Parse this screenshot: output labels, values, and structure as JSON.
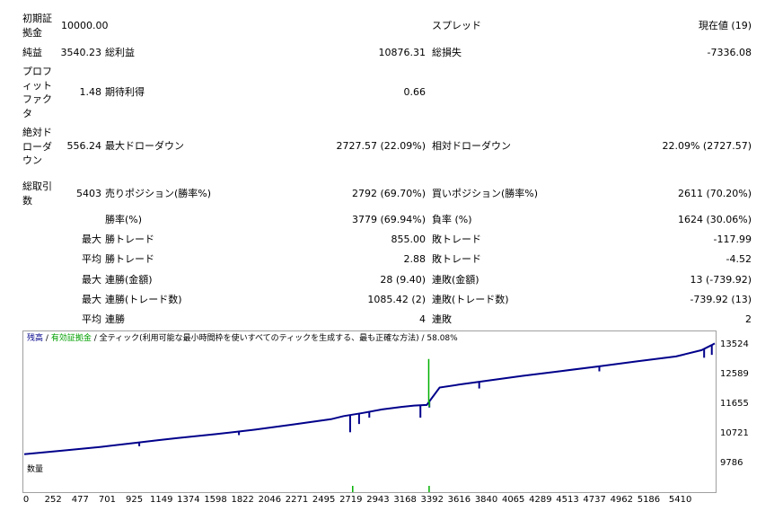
{
  "report": {
    "initial_deposit": {
      "label": "初期証拠金",
      "value": "10000.00"
    },
    "spread": {
      "label": "スプレッド",
      "value": "現在値 (19)"
    },
    "net_profit": {
      "label": "純益",
      "value": "3540.23"
    },
    "gross_profit": {
      "label": "総利益",
      "value": "10876.31"
    },
    "gross_loss": {
      "label": "総損失",
      "value": "-7336.08"
    },
    "profit_factor": {
      "label": "プロフィットファクタ",
      "value": "1.48"
    },
    "expected_payoff": {
      "label": "期待利得",
      "value": "0.66"
    },
    "abs_drawdown": {
      "label": "絶対ドローダウン",
      "value": "556.24"
    },
    "max_drawdown": {
      "label": "最大ドローダウン",
      "value": "2727.57 (22.09%)"
    },
    "rel_drawdown": {
      "label": "相対ドローダウン",
      "value": "22.09% (2727.57)"
    },
    "total_trades": {
      "label": "総取引数",
      "value": "5403"
    },
    "short_positions": {
      "label": "売りポジション(勝率%)",
      "value": "2792 (69.70%)"
    },
    "long_positions": {
      "label": "買いポジション(勝率%)",
      "value": "2611 (70.20%)"
    },
    "win_rate": {
      "label": "勝率(%)",
      "value": "3779 (69.94%)"
    },
    "loss_rate": {
      "label": "負率 (%)",
      "value": "1624 (30.06%)"
    },
    "largest_profit": {
      "prefix": "最大",
      "label": "勝トレード",
      "value": "855.00"
    },
    "largest_loss": {
      "label": "敗トレード",
      "value": "-117.99"
    },
    "average_profit": {
      "prefix": "平均",
      "label": "勝トレード",
      "value": "2.88"
    },
    "average_loss": {
      "label": "敗トレード",
      "value": "-4.52"
    },
    "max_consec_wins_money": {
      "prefix": "最大",
      "label": "連勝(金額)",
      "value": "28 (9.40)"
    },
    "max_consec_losses_money": {
      "label": "連敗(金額)",
      "value": "13 (-739.92)"
    },
    "max_consec_profit_count": {
      "prefix": "最大",
      "label": "連勝(トレード数)",
      "value": "1085.42 (2)"
    },
    "max_consec_loss_count": {
      "label": "連敗(トレード数)",
      "value": "-739.92 (13)"
    },
    "avg_consec_wins": {
      "prefix": "平均",
      "label": "連勝",
      "value": "4"
    },
    "avg_consec_losses": {
      "label": "連敗",
      "value": "2"
    }
  },
  "chart": {
    "legend_balance": "残高",
    "legend_equity": "有効証拠金",
    "legend_sep": "/",
    "legend_model": "全ティック(利用可能な最小時間枠を使いすべてのティックを生成する、最も正確な方法)",
    "legend_quality": "58.08%",
    "volume_label": "数量",
    "colors": {
      "balance": "#00008b",
      "equity": "#00b000",
      "volume": "#00b000"
    }
  },
  "chart_data": {
    "type": "line",
    "xlim": [
      0,
      5403
    ],
    "ylim": [
      9786,
      13524
    ],
    "ytick_labels": [
      "13524",
      "12589",
      "11655",
      "10721",
      "9786"
    ],
    "xtick_labels": [
      "0",
      "252",
      "477",
      "701",
      "925",
      "1149",
      "1374",
      "1598",
      "1822",
      "2046",
      "2271",
      "2495",
      "2719",
      "2943",
      "3168",
      "3392",
      "3616",
      "3840",
      "4065",
      "4289",
      "4513",
      "4737",
      "4962",
      "5186",
      "5410"
    ],
    "series": [
      {
        "role": "balance",
        "x": [
          0,
          300,
          600,
          900,
          1050,
          1200,
          1500,
          1800,
          2100,
          2400,
          2500,
          2650,
          2800,
          2950,
          3050,
          3150,
          3250,
          3400,
          3650,
          3900,
          4200,
          4500,
          4800,
          5100,
          5300,
          5380,
          5403
        ],
        "y": [
          10050,
          10160,
          10280,
          10420,
          10490,
          10560,
          10680,
          10820,
          10980,
          11150,
          11250,
          11350,
          11460,
          11540,
          11580,
          11600,
          12150,
          12240,
          12380,
          12520,
          12670,
          12820,
          12980,
          13130,
          13330,
          13490,
          13540
        ]
      },
      {
        "role": "balance_spikes",
        "x": [
          900,
          1680,
          2550,
          2620,
          2700,
          3100,
          3170,
          3560,
          4500,
          5320,
          5380
        ],
        "y": [
          10300,
          10650,
          10740,
          11000,
          11200,
          11200,
          11520,
          12120,
          12660,
          13090,
          13180
        ]
      },
      {
        "role": "equity_spikes",
        "x": [
          3165,
          3170
        ],
        "y": [
          13050,
          11540
        ]
      }
    ],
    "volume_bars_x": [
      2570,
      3168
    ]
  }
}
